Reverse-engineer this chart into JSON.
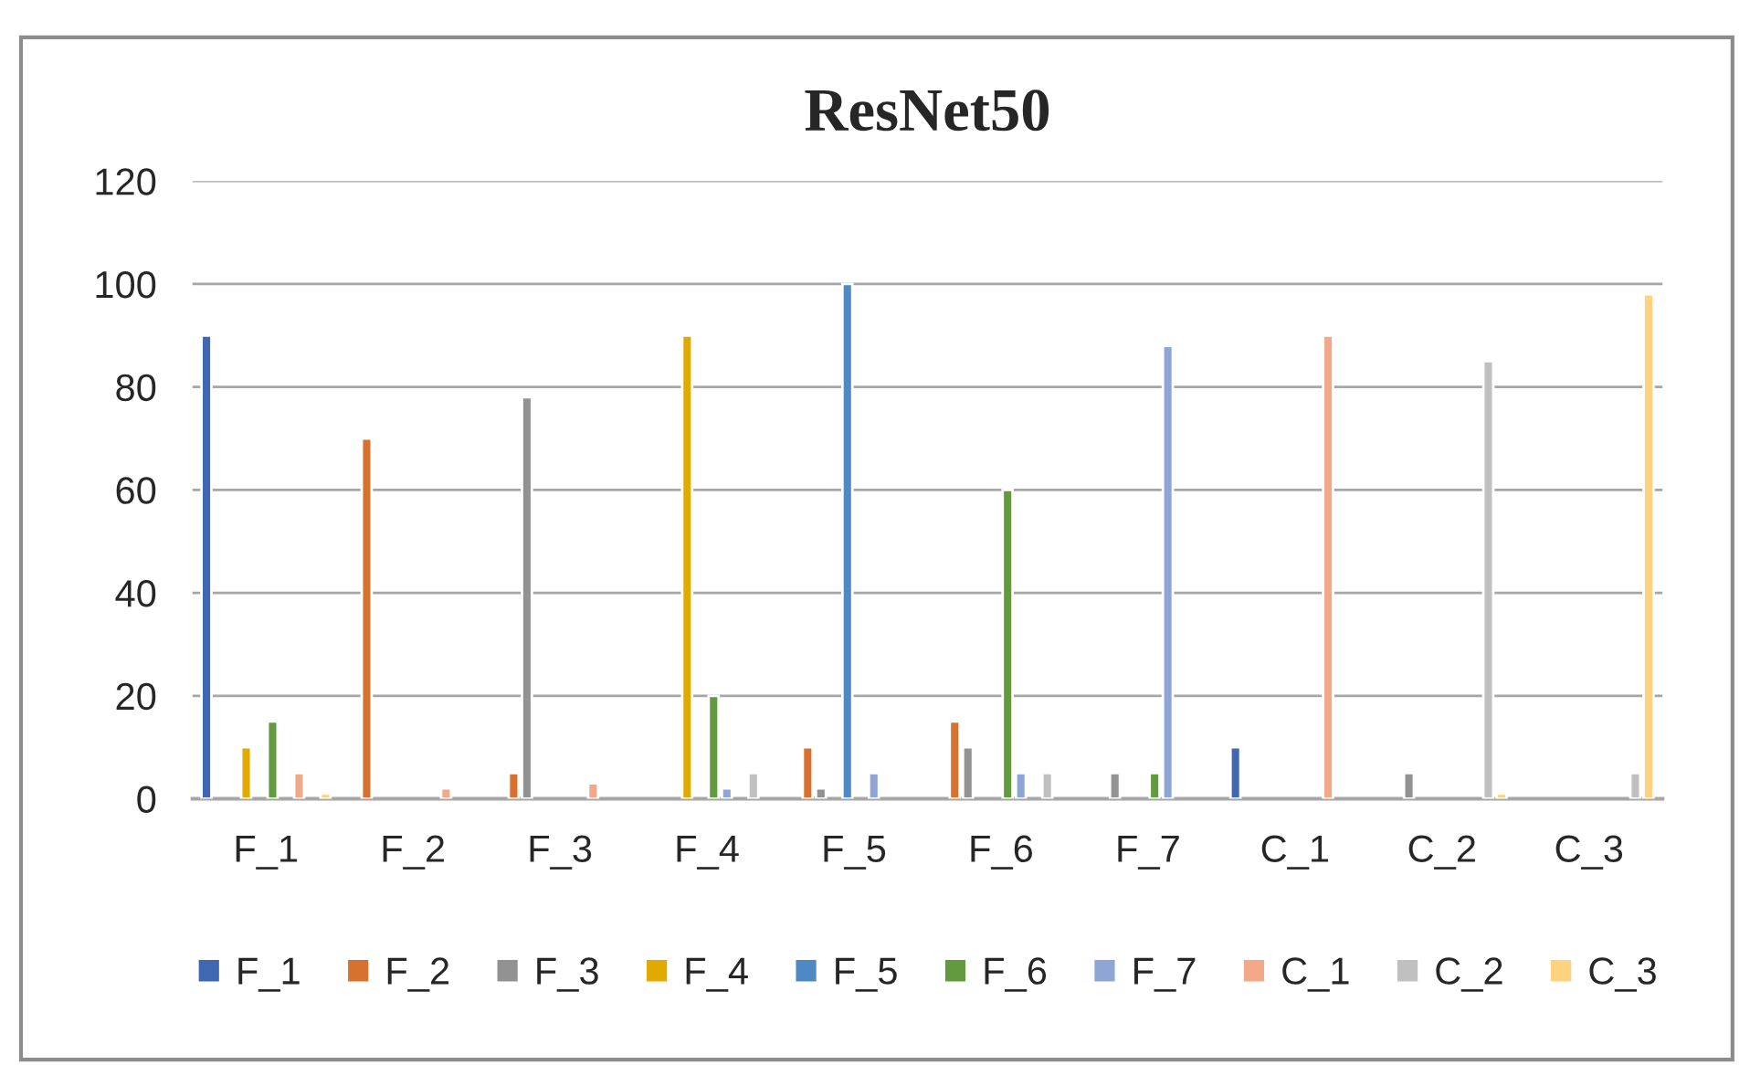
{
  "chart_data": {
    "type": "bar",
    "title": "ResNet50",
    "categories": [
      "F_1",
      "F_2",
      "F_3",
      "F_4",
      "F_5",
      "F_6",
      "F_7",
      "C_1",
      "C_2",
      "C_3"
    ],
    "series": [
      {
        "name": "F_1",
        "color": "#4068b2",
        "values": [
          90,
          null,
          null,
          null,
          null,
          null,
          null,
          10,
          null,
          null
        ]
      },
      {
        "name": "F_2",
        "color": "#d6712f",
        "values": [
          null,
          70,
          5,
          null,
          10,
          15,
          null,
          null,
          null,
          null
        ]
      },
      {
        "name": "F_3",
        "color": "#929292",
        "values": [
          null,
          null,
          78,
          null,
          2,
          10,
          5,
          null,
          5,
          null
        ]
      },
      {
        "name": "F_4",
        "color": "#e0aa00",
        "values": [
          10,
          null,
          null,
          90,
          null,
          null,
          null,
          null,
          null,
          null
        ]
      },
      {
        "name": "F_5",
        "color": "#4e89c4",
        "values": [
          null,
          null,
          null,
          null,
          100,
          null,
          null,
          null,
          null,
          null
        ]
      },
      {
        "name": "F_6",
        "color": "#639a3f",
        "values": [
          15,
          null,
          null,
          20,
          null,
          60,
          5,
          null,
          null,
          null
        ]
      },
      {
        "name": "F_7",
        "color": "#8fa5d6",
        "values": [
          null,
          null,
          null,
          2,
          5,
          5,
          88,
          null,
          null,
          null
        ]
      },
      {
        "name": "C_1",
        "color": "#f2a98a",
        "values": [
          5,
          2,
          3,
          null,
          null,
          null,
          null,
          90,
          null,
          null
        ]
      },
      {
        "name": "C_2",
        "color": "#c0c0c0",
        "values": [
          null,
          null,
          null,
          5,
          null,
          5,
          null,
          null,
          85,
          5
        ]
      },
      {
        "name": "C_3",
        "color": "#ffd280",
        "values": [
          1,
          null,
          null,
          null,
          null,
          null,
          null,
          null,
          1,
          98
        ]
      }
    ],
    "ylim": [
      0,
      120
    ],
    "yticks": [
      0,
      20,
      40,
      60,
      80,
      100,
      120
    ],
    "grid": "y",
    "legend": "bottom"
  }
}
